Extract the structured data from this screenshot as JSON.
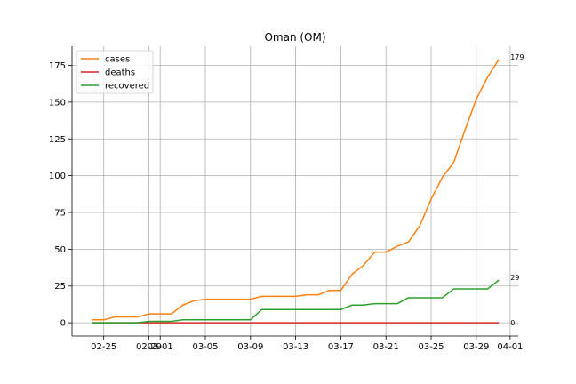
{
  "chart_data": {
    "type": "line",
    "title": "Oman (OM)",
    "xlabel": "",
    "ylabel": "",
    "x": [
      "02-24",
      "02-25",
      "02-26",
      "02-27",
      "02-28",
      "02-29",
      "03-01",
      "03-02",
      "03-03",
      "03-04",
      "03-05",
      "03-06",
      "03-07",
      "03-08",
      "03-09",
      "03-10",
      "03-11",
      "03-12",
      "03-13",
      "03-14",
      "03-15",
      "03-16",
      "03-17",
      "03-18",
      "03-19",
      "03-20",
      "03-21",
      "03-22",
      "03-23",
      "03-24",
      "03-25",
      "03-26",
      "03-27",
      "03-28",
      "03-29",
      "03-30",
      "03-31"
    ],
    "x_ticks": [
      "02-25",
      "02-29",
      "03-01",
      "03-05",
      "03-09",
      "03-13",
      "03-17",
      "03-21",
      "03-25",
      "03-29",
      "04-01"
    ],
    "y_ticks": [
      0,
      25,
      50,
      75,
      100,
      125,
      150,
      175
    ],
    "ylim": [
      -9,
      188
    ],
    "grid": true,
    "legend_position": "top-left",
    "series": [
      {
        "name": "cases",
        "color": "#ff7f0e",
        "values": [
          2,
          2,
          4,
          4,
          4,
          6,
          6,
          6,
          12,
          15,
          16,
          16,
          16,
          16,
          16,
          18,
          18,
          18,
          18,
          19,
          19,
          22,
          22,
          33,
          39,
          48,
          48,
          52,
          55,
          66,
          84,
          99,
          109,
          131,
          152,
          167,
          179
        ]
      },
      {
        "name": "deaths",
        "color": "#d62728",
        "values": [
          0,
          0,
          0,
          0,
          0,
          0,
          0,
          0,
          0,
          0,
          0,
          0,
          0,
          0,
          0,
          0,
          0,
          0,
          0,
          0,
          0,
          0,
          0,
          0,
          0,
          0,
          0,
          0,
          0,
          0,
          0,
          0,
          0,
          0,
          0,
          0,
          0
        ]
      },
      {
        "name": "recovered",
        "color": "#2ca02c",
        "values": [
          0,
          0,
          0,
          0,
          0,
          1,
          1,
          1,
          2,
          2,
          2,
          2,
          2,
          2,
          2,
          9,
          9,
          9,
          9,
          9,
          9,
          9,
          9,
          12,
          12,
          13,
          13,
          13,
          17,
          17,
          17,
          17,
          23,
          23,
          23,
          23,
          29
        ]
      }
    ],
    "end_labels": [
      "179",
      "29",
      "0"
    ]
  }
}
